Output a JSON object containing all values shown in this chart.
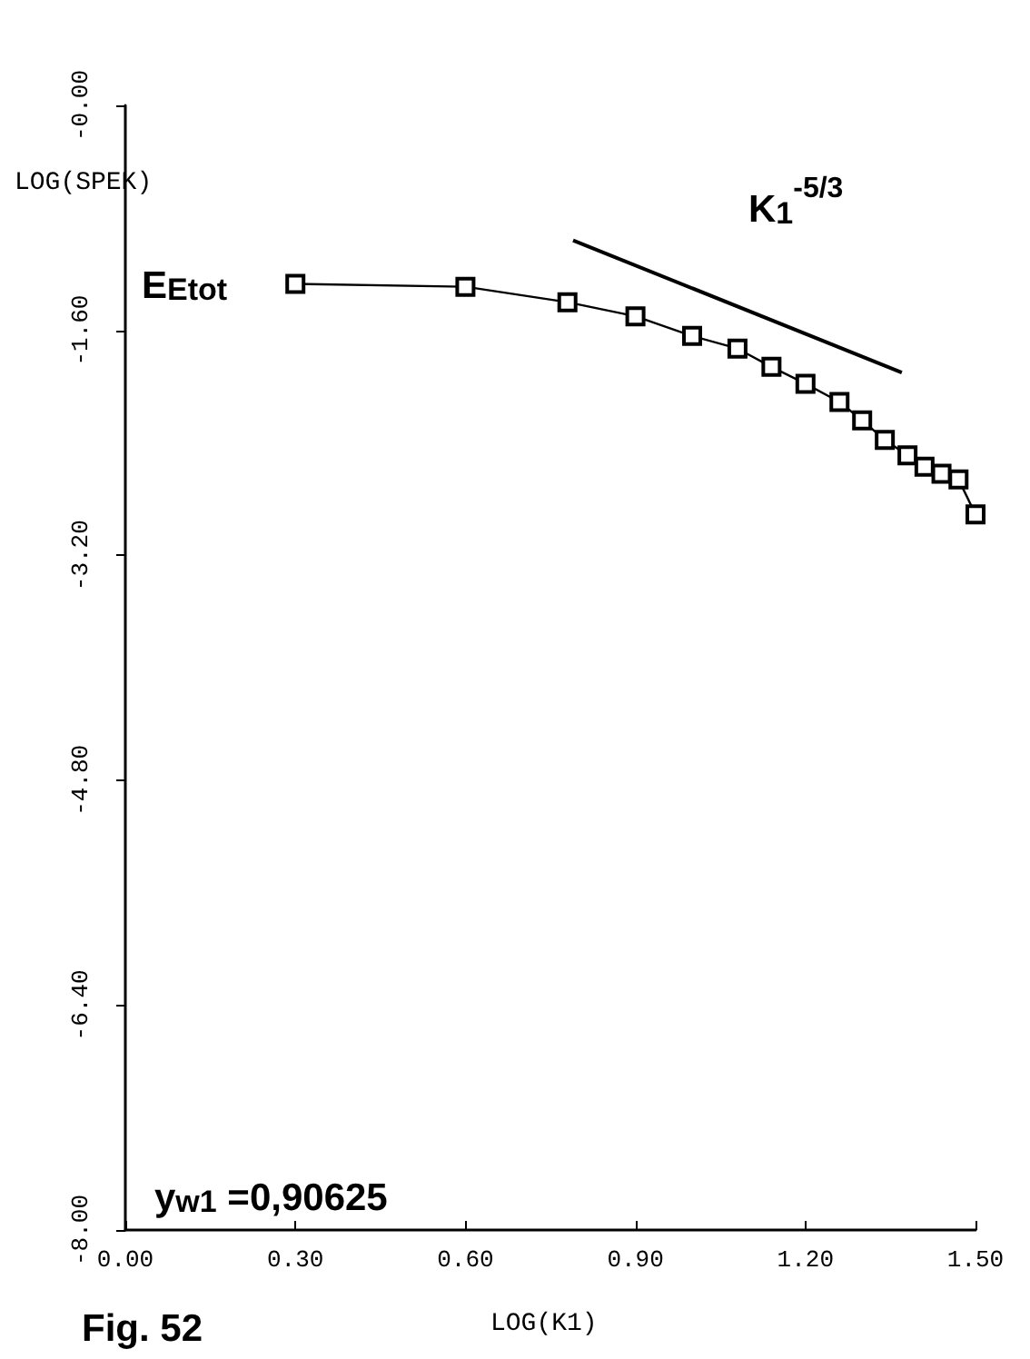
{
  "chart_data": {
    "type": "line",
    "xlabel": "LOG(K1)",
    "ylabel": "LOG(SPEK)",
    "x": [
      0.3,
      0.6,
      0.78,
      0.9,
      1.0,
      1.08,
      1.14,
      1.2,
      1.26,
      1.3,
      1.34,
      1.38,
      1.41,
      1.44,
      1.47,
      1.5
    ],
    "series": [
      {
        "color": "#000000",
        "marker": "square",
        "values": [
          -1.27,
          -1.29,
          -1.4,
          -1.5,
          -1.64,
          -1.73,
          -1.86,
          -1.98,
          -2.11,
          -2.24,
          -2.38,
          -2.49,
          -2.57,
          -2.62,
          -2.66,
          -2.91
        ]
      },
      {
        "type": "line",
        "color": "#000000",
        "marker": "none",
        "x": [
          0.79,
          1.37
        ],
        "values": [
          -0.96,
          -1.9
        ]
      }
    ],
    "xlim": [
      0,
      1.5
    ],
    "ylim": [
      -8,
      0
    ],
    "xticks": [
      {
        "value": 0,
        "label": "0.00"
      },
      {
        "value": 0.3,
        "label": "0.30"
      },
      {
        "value": 0.6,
        "label": "0.60"
      },
      {
        "value": 0.9,
        "label": "0.90"
      },
      {
        "value": 1.2,
        "label": "1.20"
      },
      {
        "value": 1.5,
        "label": "1.50"
      }
    ],
    "yticks": [
      {
        "value": 0,
        "label": "-0.00"
      },
      {
        "value": -1.6,
        "label": "-1.60"
      },
      {
        "value": -3.2,
        "label": "-3.20"
      },
      {
        "value": -4.8,
        "label": "-4.80"
      },
      {
        "value": -6.4,
        "label": "-6.40"
      },
      {
        "value": -8,
        "label": "-8.00"
      }
    ],
    "grid": false,
    "annotations": [
      "K$_{1}$$^{-5/3}$",
      "E$_{Etot}$",
      "y$_{w1}$ =0,90625",
      "Fig. 52"
    ]
  }
}
